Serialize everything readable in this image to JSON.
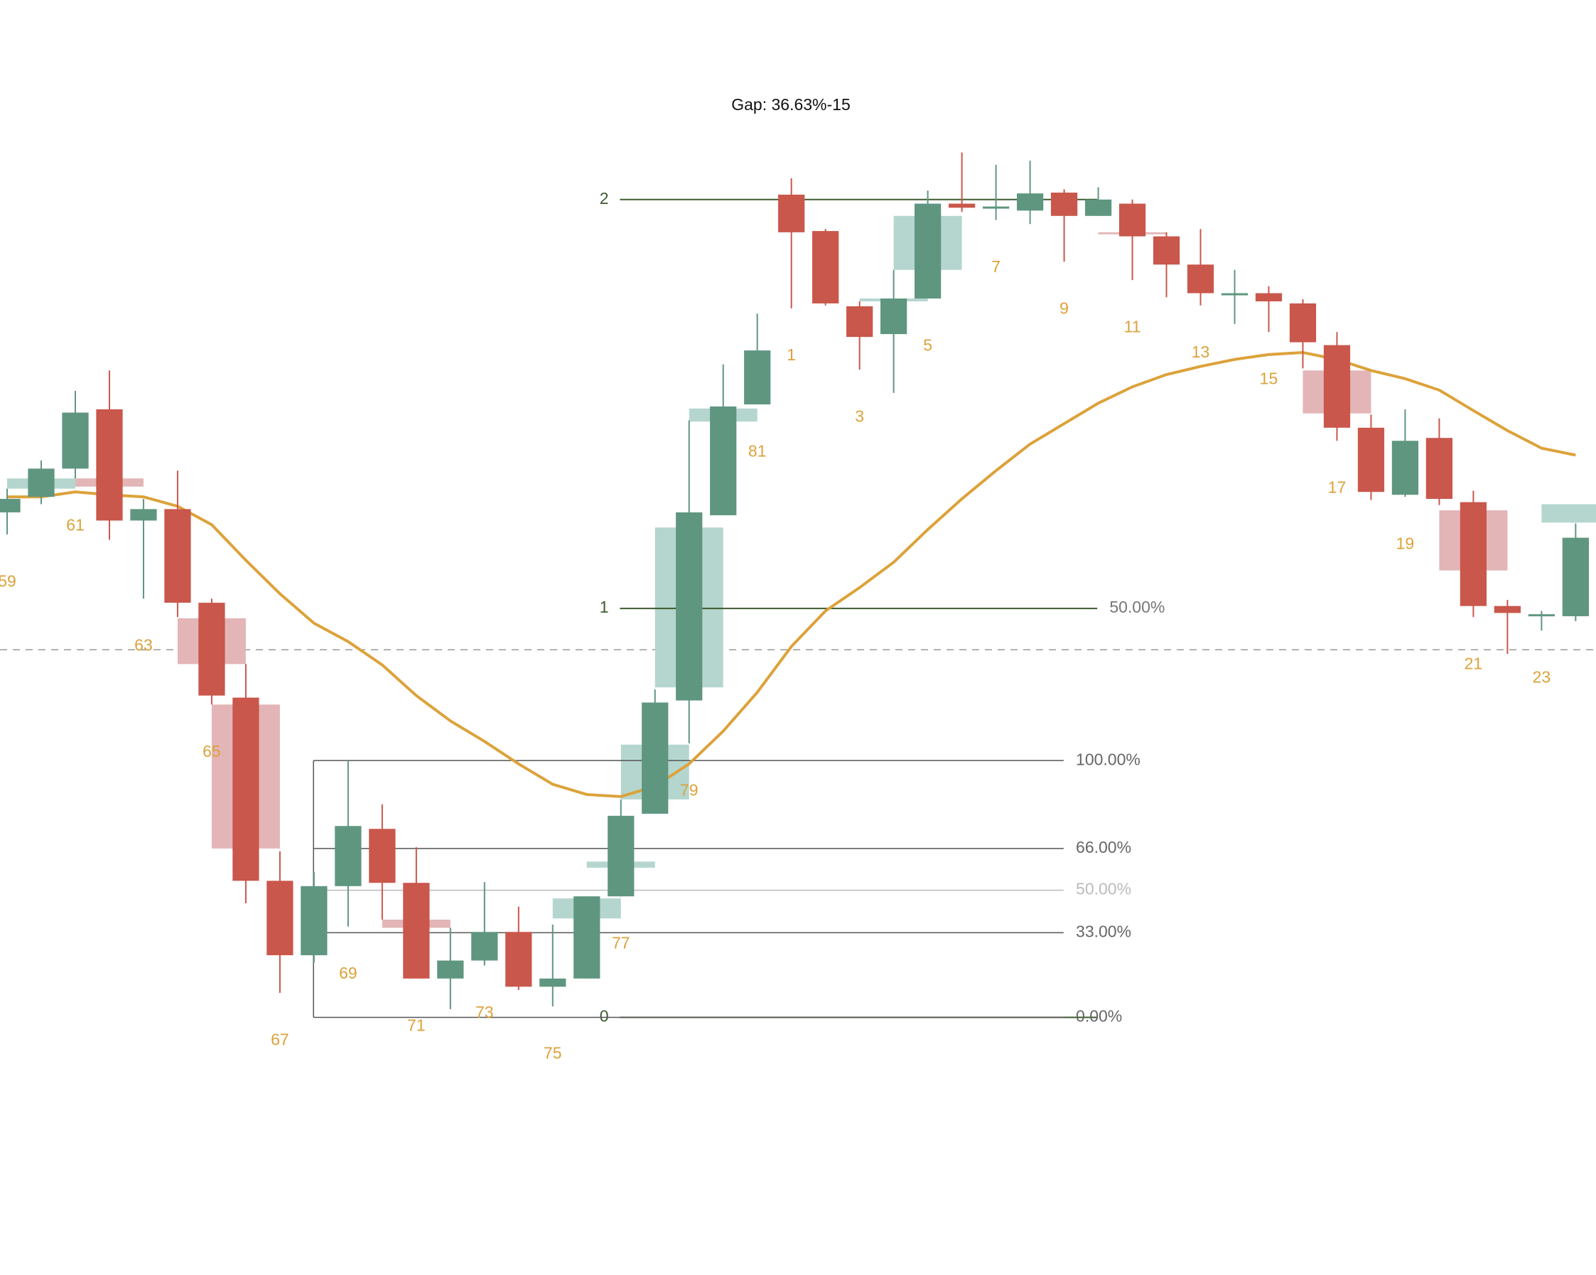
{
  "chart_data": {
    "type": "candlestick",
    "title": "Gap: 36.63%-15",
    "categories": [
      "59",
      null,
      "61",
      null,
      "63",
      null,
      "65",
      null,
      "67",
      null,
      "69",
      null,
      "71",
      null,
      "73",
      null,
      "75",
      null,
      "77",
      null,
      "79",
      null,
      "81",
      "1",
      null,
      "3",
      null,
      "5",
      null,
      "7",
      null,
      "9",
      null,
      "11",
      null,
      "13",
      null,
      "15",
      null,
      "17",
      null,
      "19",
      null,
      "21",
      null,
      "23",
      null
    ],
    "open": [
      1.235,
      1.273,
      1.342,
      1.487,
      1.215,
      1.243,
      1.014,
      0.782,
      0.334,
      0.152,
      0.321,
      0.461,
      0.329,
      0.095,
      0.139,
      0.209,
      0.075,
      0.095,
      0.296,
      0.498,
      0.775,
      1.228,
      1.499,
      2.012,
      1.923,
      1.739,
      1.671,
      1.758,
      1.99,
      1.978,
      1.973,
      2.017,
      1.96,
      1.99,
      1.91,
      1.841,
      1.766,
      1.771,
      1.746,
      1.644,
      1.442,
      1.278,
      1.417,
      1.26,
      1.006,
      0.984,
      0.981
    ],
    "high": [
      1.293,
      1.362,
      1.532,
      1.582,
      1.268,
      1.337,
      1.024,
      0.864,
      0.406,
      0.356,
      0.63,
      0.521,
      0.416,
      0.219,
      0.331,
      0.271,
      0.227,
      0.296,
      0.533,
      0.802,
      1.46,
      1.597,
      1.721,
      2.052,
      1.928,
      1.751,
      1.828,
      2.022,
      2.115,
      2.085,
      2.095,
      2.025,
      2.03,
      2.0,
      1.92,
      1.928,
      1.828,
      1.788,
      1.756,
      1.676,
      1.474,
      1.487,
      1.465,
      1.288,
      1.021,
      0.994,
      1.208
    ],
    "low": [
      1.181,
      1.255,
      1.318,
      1.168,
      1.024,
      0.979,
      0.765,
      0.279,
      0.06,
      0.134,
      0.222,
      0.239,
      0.095,
      0.02,
      0.127,
      0.067,
      0.027,
      0.095,
      0.296,
      0.498,
      0.67,
      1.228,
      1.499,
      1.734,
      1.741,
      1.584,
      1.527,
      1.758,
      1.97,
      1.95,
      1.94,
      1.848,
      1.96,
      1.803,
      1.761,
      1.741,
      1.696,
      1.676,
      1.587,
      1.41,
      1.265,
      1.273,
      1.253,
      0.979,
      0.889,
      0.946,
      0.969
    ],
    "close": [
      1.268,
      1.342,
      1.479,
      1.215,
      1.243,
      1.014,
      0.787,
      0.334,
      0.152,
      0.321,
      0.468,
      0.329,
      0.095,
      0.139,
      0.209,
      0.075,
      0.095,
      0.296,
      0.493,
      0.77,
      1.235,
      1.494,
      1.631,
      1.92,
      1.746,
      1.664,
      1.758,
      1.99,
      1.98,
      1.983,
      2.015,
      1.96,
      2.0,
      1.91,
      1.841,
      1.771,
      1.771,
      1.751,
      1.651,
      1.442,
      1.285,
      1.41,
      1.268,
      1.006,
      0.989,
      0.986,
      1.173
    ],
    "htf": {
      "start": [
        0,
        2,
        5,
        6,
        11,
        16,
        17,
        18,
        19,
        20,
        25,
        26,
        32,
        38,
        42,
        45
      ],
      "open": [
        1.293,
        1.318,
        0.976,
        0.765,
        0.239,
        0.242,
        0.366,
        0.533,
        0.807,
        1.457,
        1.751,
        1.828,
        1.92,
        1.582,
        1.24,
        1.21
      ],
      "close": [
        1.318,
        1.298,
        0.864,
        0.413,
        0.219,
        0.291,
        0.381,
        0.667,
        1.198,
        1.489,
        1.758,
        1.96,
        1.915,
        1.477,
        1.093,
        1.255
      ]
    },
    "ma": {
      "color": "#dca23a",
      "values": [
        1.273,
        1.273,
        1.285,
        1.278,
        1.273,
        1.25,
        1.205,
        1.118,
        1.036,
        0.964,
        0.919,
        0.862,
        0.787,
        0.725,
        0.675,
        0.62,
        0.57,
        0.545,
        0.54,
        0.565,
        0.62,
        0.7,
        0.795,
        0.907,
        0.994,
        1.051,
        1.113,
        1.193,
        1.268,
        1.337,
        1.402,
        1.452,
        1.502,
        1.542,
        1.572,
        1.592,
        1.609,
        1.621,
        1.626,
        1.609,
        1.582,
        1.562,
        1.534,
        1.484,
        1.435,
        1.392,
        1.375
      ]
    },
    "yticks": [
      0,
      1,
      2
    ],
    "range_lines": [
      {
        "value": 1,
        "label": "50.00%"
      }
    ],
    "fib_levels": [
      {
        "value": 0.628,
        "label": "100.00%"
      },
      {
        "value": 0.413,
        "label": "66.00%"
      },
      {
        "value": 0.311,
        "label": "50.00%"
      },
      {
        "value": 0.207,
        "label": "33.00%"
      },
      {
        "value": 0,
        "label": "0.00%"
      }
    ],
    "dashed_level": 0.899,
    "ylim": [
      -0.63,
      2.488
    ],
    "up_color": "#5f9680",
    "down_color": "#c9574b",
    "up_box_color": "#b5d6cf",
    "down_box_color": "#e3b5b7"
  }
}
